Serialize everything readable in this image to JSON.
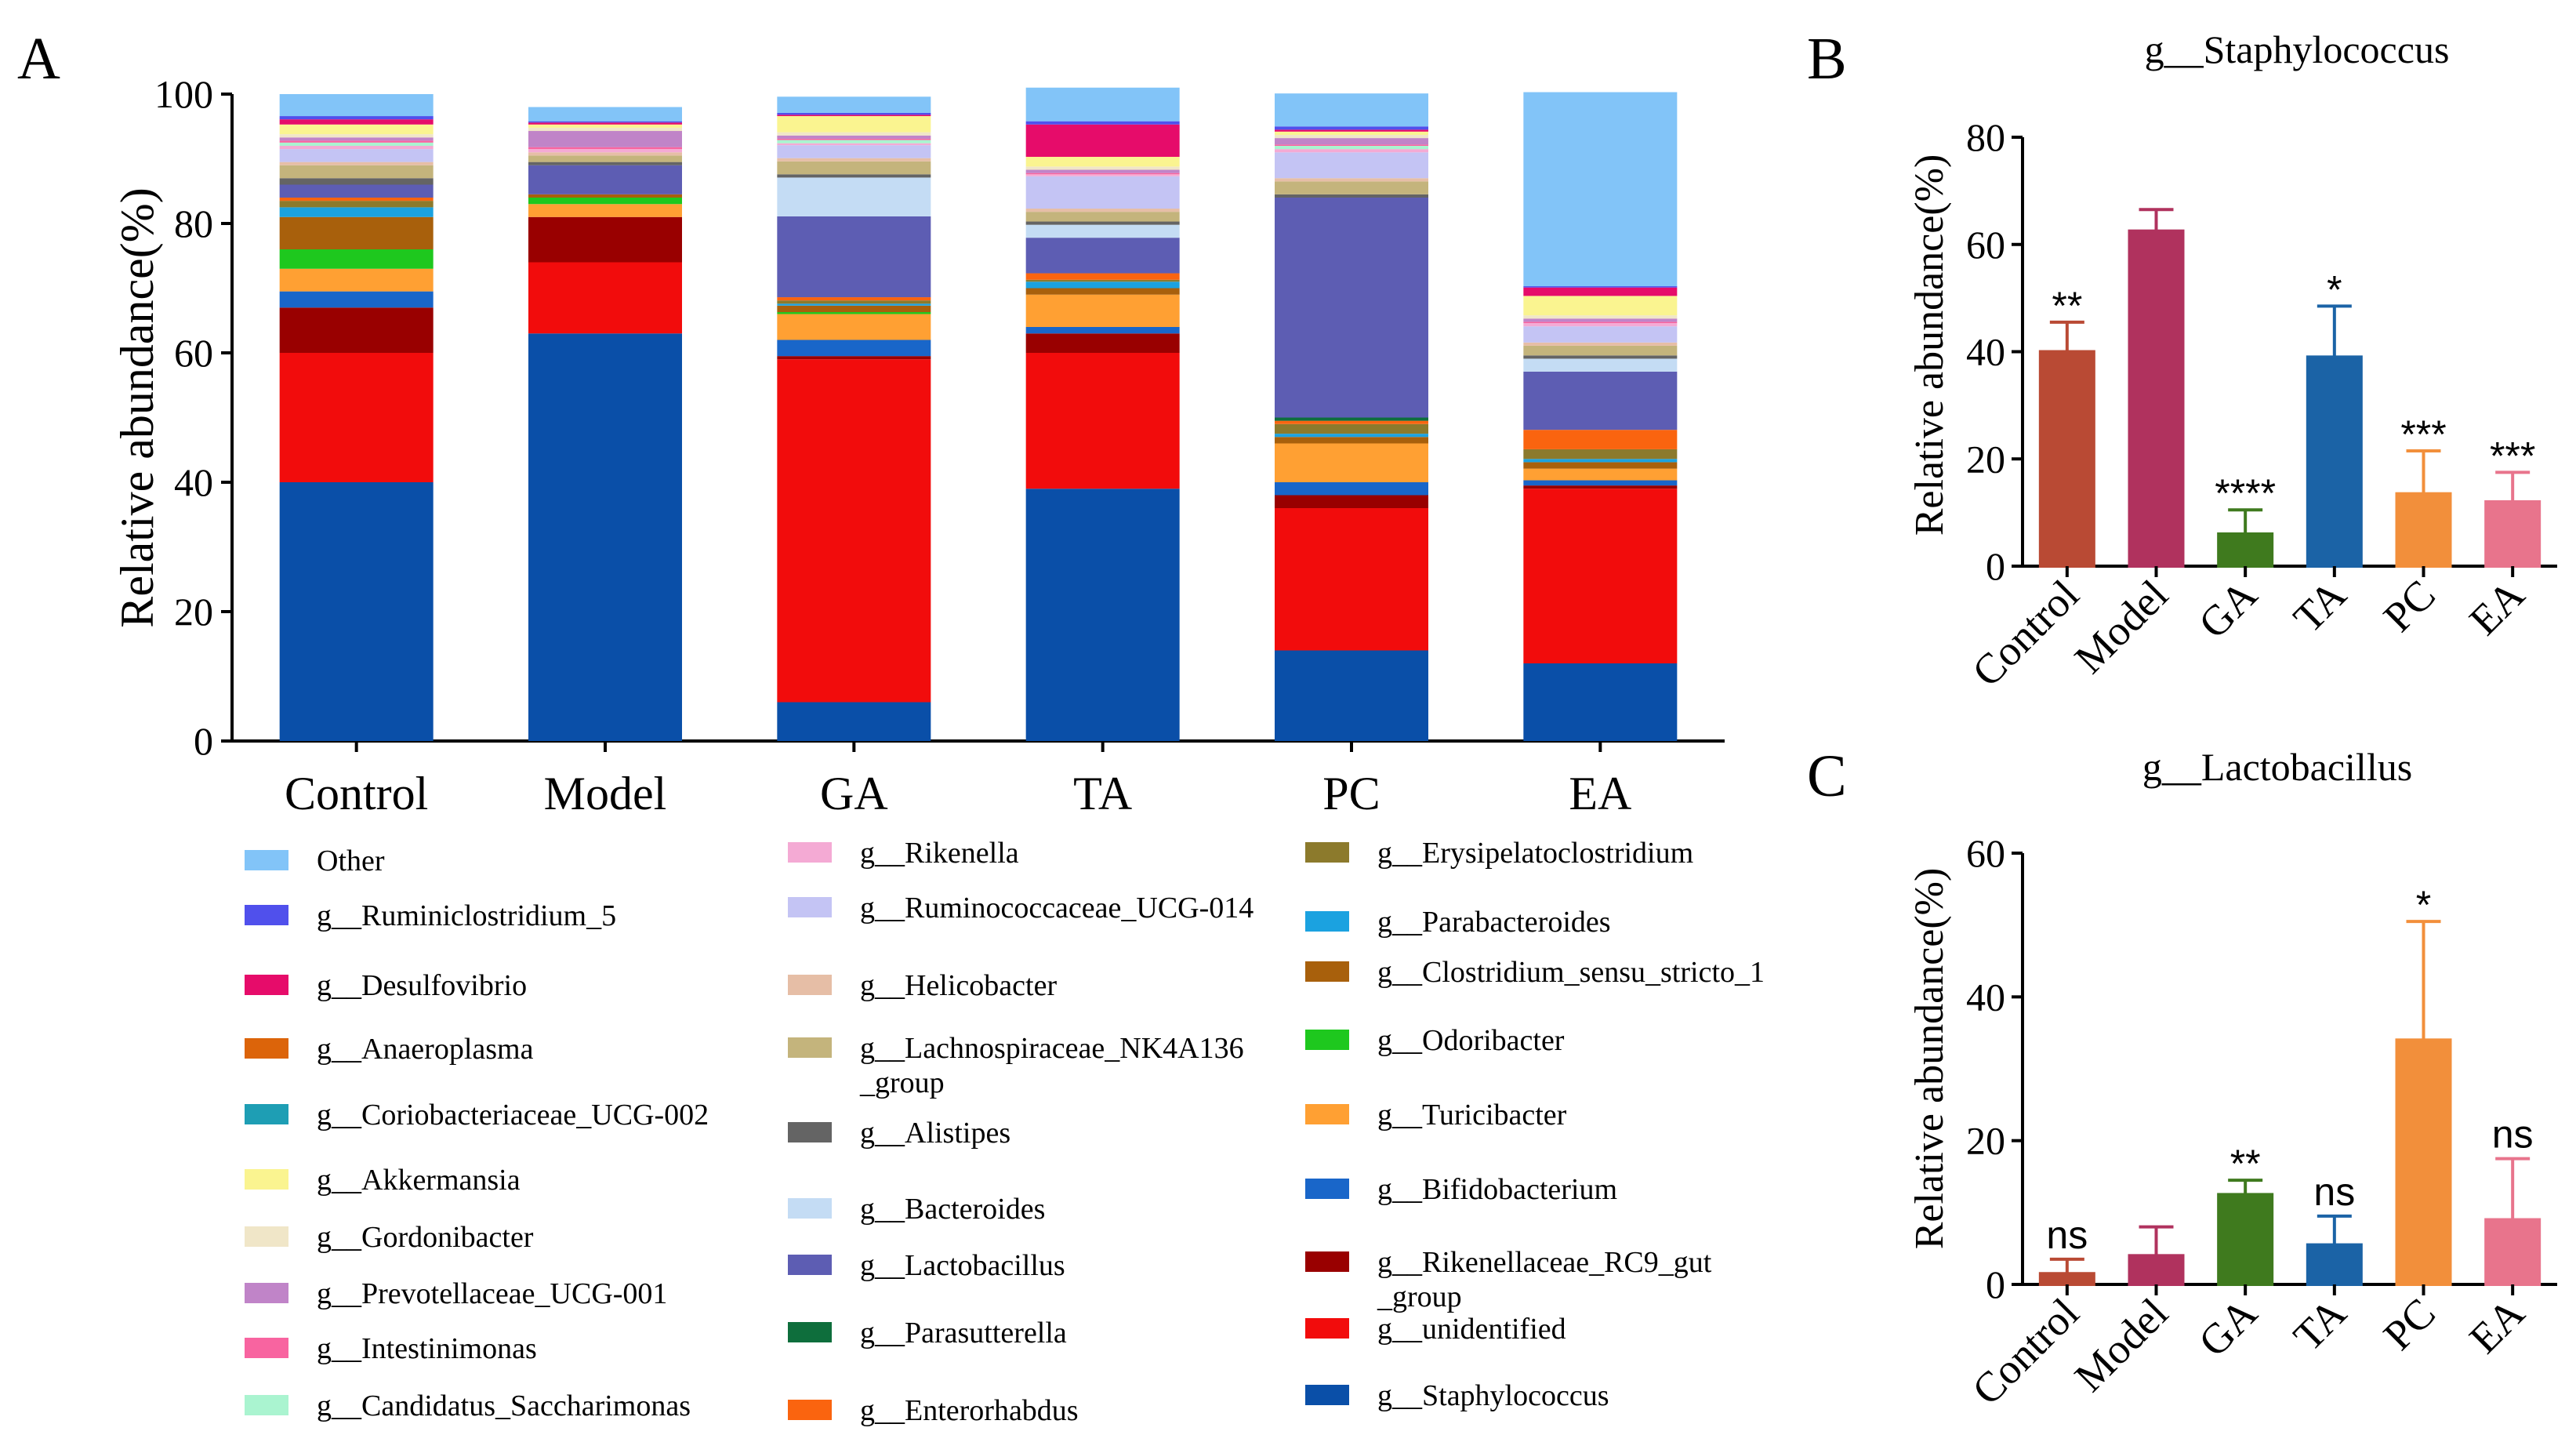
{
  "chart_data": [
    {
      "panel": "A",
      "type": "bar",
      "stacked": true,
      "title": "",
      "xlabel": "",
      "ylabel": "Relative abundance(%)",
      "ylim": [
        0,
        100
      ],
      "yticks": [
        "0",
        "20",
        "40",
        "60",
        "80",
        "100"
      ],
      "categories": [
        "Control",
        "Model",
        "GA",
        "TA",
        "PC",
        "EA"
      ],
      "series": [
        {
          "name": "g__Staphylococcus",
          "color": "#0a4fa8",
          "values": [
            40,
            63,
            6,
            39,
            14,
            12
          ]
        },
        {
          "name": "g__unidentified",
          "color": "#f20c0c",
          "values": [
            20,
            11,
            53,
            21,
            22,
            27
          ]
        },
        {
          "name": "g__Rikenellaceae_RC9_gut _group",
          "color": "#990000",
          "values": [
            7,
            7,
            0.5,
            3,
            2,
            0.5
          ]
        },
        {
          "name": "g__Bifidobacterium",
          "color": "#1966c9",
          "values": [
            2.5,
            0,
            2.5,
            1,
            2,
            0.8
          ]
        },
        {
          "name": "g__Turicibacter",
          "color": "#ffa033",
          "values": [
            3.5,
            2,
            4,
            5,
            6,
            1.8
          ]
        },
        {
          "name": "g__Odoribacter",
          "color": "#1ec81e",
          "values": [
            3,
            1,
            0.3,
            0,
            0,
            0
          ]
        },
        {
          "name": "g__Clostridium_sensu_stricto_1",
          "color": "#a8600c",
          "values": [
            5,
            0.5,
            1,
            1,
            1,
            1
          ]
        },
        {
          "name": "g__Parabacteroides",
          "color": "#1ba2e0",
          "values": [
            1.5,
            0,
            0.3,
            1,
            0.5,
            0.5
          ]
        },
        {
          "name": "g__Erysipelatoclostridium",
          "color": "#8c7a2c",
          "values": [
            1,
            0,
            0.5,
            0.3,
            1.5,
            1.5
          ]
        },
        {
          "name": "g__Enterorhabdus",
          "color": "#fa640f",
          "values": [
            0.5,
            0,
            0.5,
            1,
            0.5,
            3
          ]
        },
        {
          "name": "g__Parasutterella",
          "color": "#0e6e3c",
          "values": [
            0,
            0,
            0,
            0,
            0.5,
            0
          ]
        },
        {
          "name": "g__Lactobacillus",
          "color": "#5d5db3",
          "values": [
            2,
            4.5,
            12.5,
            5.5,
            34,
            9
          ]
        },
        {
          "name": "g__Bacteroides",
          "color": "#c4dcf4",
          "values": [
            0,
            0,
            6,
            2,
            0,
            2
          ]
        },
        {
          "name": "g__Alistipes",
          "color": "#646464",
          "values": [
            1,
            0.5,
            0.5,
            0.5,
            0.5,
            0.5
          ]
        },
        {
          "name": "g__Lachnospiraceae_NK4A136 _group",
          "color": "#c4b47c",
          "values": [
            2,
            1,
            2,
            1.5,
            2,
            1.5
          ]
        },
        {
          "name": "g__Helicobacter",
          "color": "#e6bea6",
          "values": [
            0.5,
            0.5,
            0.5,
            0.5,
            0.5,
            0.5
          ]
        },
        {
          "name": "g__Ruminococcaceae_UCG-014",
          "color": "#c4c4f4",
          "values": [
            2,
            0,
            2,
            5,
            4,
            2.5
          ]
        },
        {
          "name": "g__Rikenella",
          "color": "#f4aad4",
          "values": [
            0.5,
            0.5,
            0.3,
            0.3,
            0.5,
            0.5
          ]
        },
        {
          "name": "g__Candidatus_Saccharimonas",
          "color": "#aaf4d0",
          "values": [
            0.5,
            0,
            0.5,
            0,
            0.5,
            0
          ]
        },
        {
          "name": "g__Intestinimonas",
          "color": "#f864a0",
          "values": [
            0.3,
            0.3,
            0.2,
            0.2,
            0.2,
            0.2
          ]
        },
        {
          "name": "g__Prevotellaceae_UCG-001",
          "color": "#c084c8",
          "values": [
            0.5,
            2.5,
            0.5,
            0.5,
            1,
            0.5
          ]
        },
        {
          "name": "g__Gordonibacter",
          "color": "#f0e6c8",
          "values": [
            0.5,
            0.5,
            0.5,
            0.5,
            0.5,
            0.5
          ]
        },
        {
          "name": "g__Akkermansia",
          "color": "#faf490",
          "values": [
            1.5,
            0.5,
            2.5,
            1.5,
            0.5,
            3
          ]
        },
        {
          "name": "g__Coriobacteriaceae_UCG-002",
          "color": "#1e9eb4",
          "values": [
            0,
            0,
            0,
            0,
            0,
            0
          ]
        },
        {
          "name": "g__Anaeroplasma",
          "color": "#dc640a",
          "values": [
            0,
            0,
            0,
            0,
            0,
            0
          ]
        },
        {
          "name": "g__Desulfovibrio",
          "color": "#e60c6a",
          "values": [
            0.8,
            0.3,
            0.2,
            5,
            0.3,
            1.3
          ]
        },
        {
          "name": "g__Ruminiclostridium_5",
          "color": "#5050ec",
          "values": [
            0.5,
            0.2,
            0.3,
            0.5,
            0.5,
            0.2
          ]
        },
        {
          "name": "Other",
          "color": "#82c4f8",
          "values": [
            3.4,
            2.2,
            2.5,
            5.2,
            5.1,
            30
          ]
        }
      ],
      "legend_order": [
        [
          "Other",
          "g__Ruminiclostridium_5",
          "g__Desulfovibrio",
          "g__Anaeroplasma",
          "g__Coriobacteriaceae_UCG-002",
          "g__Akkermansia",
          "g__Gordonibacter",
          "g__Prevotellaceae_UCG-001",
          "g__Intestinimonas",
          "g__Candidatus_Saccharimonas"
        ],
        [
          "g__Rikenella",
          "g__Ruminococcaceae_UCG-014",
          "g__Helicobacter",
          "g__Lachnospiraceae_NK4A136 _group",
          "g__Alistipes",
          "g__Bacteroides",
          "g__Lactobacillus",
          "g__Parasutterella",
          "g__Enterorhabdus"
        ],
        [
          "g__Erysipelatoclostridium",
          "g__Parabacteroides",
          "g__Clostridium_sensu_stricto_1",
          "g__Odoribacter",
          "g__Turicibacter",
          "g__Bifidobacterium",
          "g__Rikenellaceae_RC9_gut _group",
          "g__unidentified",
          "g__Staphylococcus"
        ]
      ]
    },
    {
      "panel": "B",
      "type": "bar",
      "title": "g__Staphylococcus",
      "xlabel": "",
      "ylabel": "Relative abundance(%)",
      "ylim": [
        0,
        80
      ],
      "yticks": [
        "0",
        "20",
        "40",
        "60",
        "80"
      ],
      "categories": [
        "Control",
        "Model",
        "GA",
        "TA",
        "PC",
        "EA"
      ],
      "values": [
        40,
        62.5,
        6,
        39,
        13.5,
        12
      ],
      "errors": [
        5.5,
        4,
        4.5,
        9.5,
        8,
        5.5
      ],
      "significance": [
        "**",
        "",
        "****",
        "*",
        "***",
        "***"
      ],
      "colors": [
        "#b94a34",
        "#b0325e",
        "#3f7a1e",
        "#1b63a6",
        "#f28f3b",
        "#e8748c"
      ]
    },
    {
      "panel": "C",
      "type": "bar",
      "title": "g__Lactobacillus",
      "xlabel": "",
      "ylabel": "Relative abundance(%)",
      "ylim": [
        0,
        60
      ],
      "yticks": [
        "0",
        "20",
        "40",
        "60"
      ],
      "categories": [
        "Control",
        "Model",
        "GA",
        "TA",
        "PC",
        "EA"
      ],
      "values": [
        1.5,
        4,
        12.5,
        5.5,
        34,
        9
      ],
      "errors": [
        2,
        4,
        2,
        4,
        16.5,
        8.5
      ],
      "significance": [
        "ns",
        "",
        "**",
        "ns",
        "*",
        "ns"
      ],
      "colors": [
        "#b94a34",
        "#b0325e",
        "#3f7a1e",
        "#1b63a6",
        "#f28f3b",
        "#e8748c"
      ]
    }
  ],
  "panel_labels": [
    "A",
    "B",
    "C"
  ]
}
